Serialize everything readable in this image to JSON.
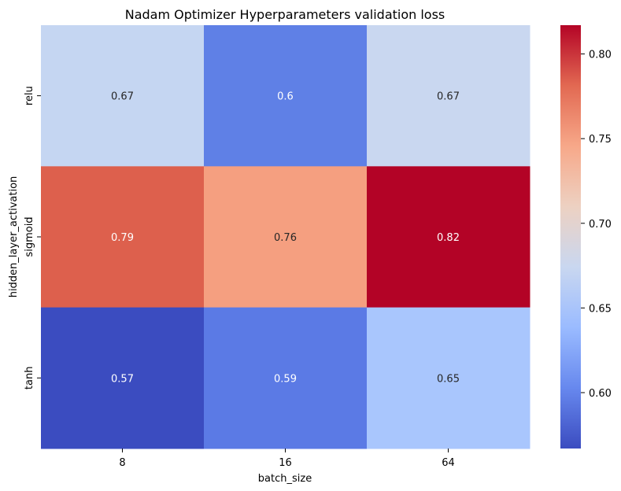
{
  "chart_data": {
    "type": "heatmap",
    "title": "Nadam Optimizer Hyperparameters validation loss",
    "xlabel": "batch_size",
    "ylabel": "hidden_layer_activation",
    "x_categories": [
      "8",
      "16",
      "64"
    ],
    "y_categories": [
      "relu",
      "sigmoid",
      "tanh"
    ],
    "values": [
      [
        0.67,
        0.6,
        0.67
      ],
      [
        0.79,
        0.76,
        0.82
      ],
      [
        0.57,
        0.59,
        0.65
      ]
    ],
    "value_labels": [
      [
        "0.67",
        "0.6",
        "0.67"
      ],
      [
        "0.79",
        "0.76",
        "0.82"
      ],
      [
        "0.57",
        "0.59",
        "0.65"
      ]
    ],
    "colormap": "coolwarm",
    "cell_colors": [
      [
        "#c5d6f2",
        "#5f80e6",
        "#c9d7f0"
      ],
      [
        "#dd604d",
        "#f59f80",
        "#b30326"
      ],
      [
        "#3b4cc0",
        "#5b7ae5",
        "#a9c6fd"
      ]
    ],
    "colorbar": {
      "range": [
        0.567,
        0.817
      ],
      "ticks": [
        0.6,
        0.65,
        0.7,
        0.75,
        0.8
      ],
      "tick_labels": [
        "0.60",
        "0.65",
        "0.70",
        "0.75",
        "0.80"
      ],
      "stops": [
        "#3b4cc0",
        "#6788ee",
        "#9abbff",
        "#c9d7f0",
        "#edd1c2",
        "#f7a889",
        "#e26952",
        "#b40426"
      ]
    },
    "annotation_colors": {
      "light": "#ffffff",
      "dark": "#262626"
    }
  }
}
